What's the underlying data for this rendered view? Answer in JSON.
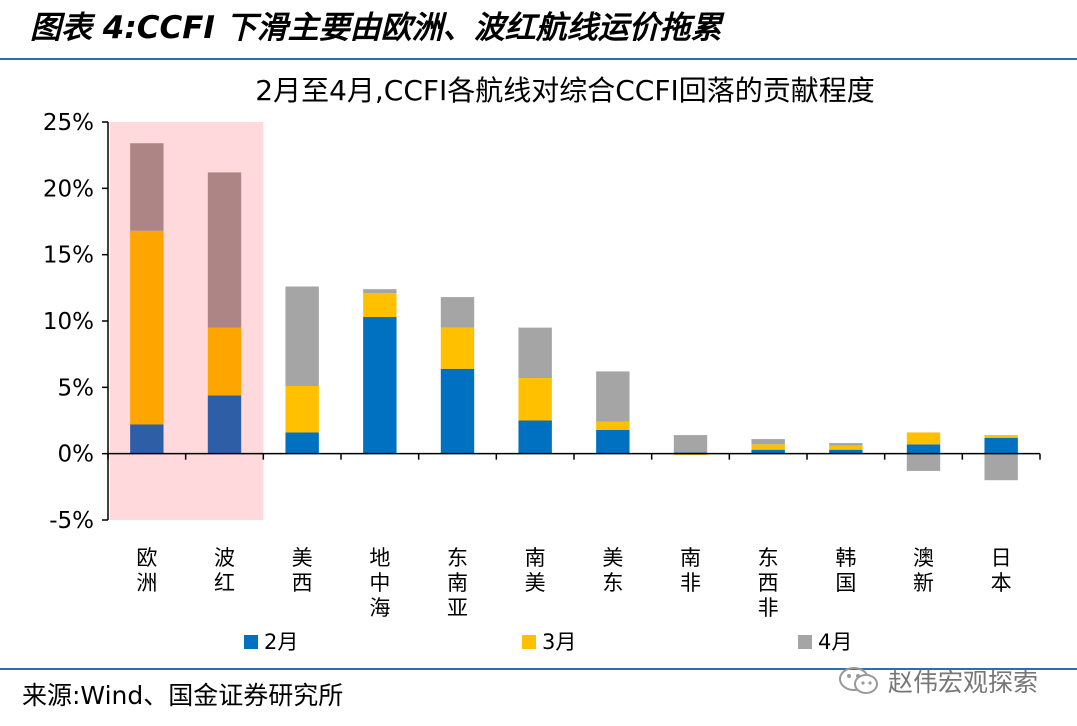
{
  "figure": {
    "title": "图表 4:CCFI 下滑主要由欧洲、波红航线运价拖累",
    "source": "来源:Wind、国金证券研究所",
    "watermark": "赵伟宏观探索",
    "watermark_icon": "wechat-icon"
  },
  "chart_data": {
    "type": "bar",
    "stacked": true,
    "title": "2月至4月,CCFI各航线对综合CCFI回落的贡献程度",
    "categories": [
      "欧洲",
      "波红",
      "美西",
      "地中海",
      "东南亚",
      "南美",
      "美东",
      "南非",
      "东西非",
      "韩国",
      "澳新",
      "日本"
    ],
    "series": [
      {
        "name": "2月",
        "color": "#0070c0",
        "values": [
          2.2,
          4.4,
          1.6,
          10.3,
          6.4,
          2.5,
          1.8,
          0.1,
          0.3,
          0.3,
          0.7,
          1.2
        ]
      },
      {
        "name": "3月",
        "color": "#ffc000",
        "values": [
          14.6,
          5.1,
          3.5,
          1.8,
          3.1,
          3.2,
          0.6,
          -0.1,
          0.4,
          0.3,
          0.9,
          0.2
        ]
      },
      {
        "name": "4月",
        "color": "#a5a5a5",
        "values": [
          6.6,
          11.7,
          7.5,
          0.3,
          2.3,
          3.8,
          3.8,
          1.3,
          0.4,
          0.2,
          -1.3,
          -2.0
        ]
      }
    ],
    "highlight": {
      "categories": [
        "欧洲",
        "波红"
      ],
      "color": "#ffd9dc",
      "series_colors": [
        "#2e5ea6",
        "#ffa500",
        "#ae8585"
      ]
    },
    "ylim": [
      -5,
      25
    ],
    "yticks": [
      -5,
      0,
      5,
      10,
      15,
      20,
      25
    ],
    "ytick_format": "percent",
    "grid": false,
    "legend": "bottom",
    "xlabel": "",
    "ylabel": ""
  }
}
